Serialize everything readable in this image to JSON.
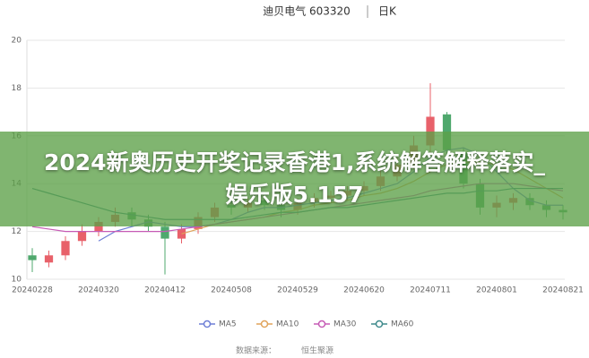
{
  "chart_data": {
    "type": "candlestick",
    "title": "迪贝电气 603320",
    "period": "日K",
    "categories": [
      "20240228",
      null,
      null,
      null,
      "20240320",
      null,
      null,
      null,
      "20240412",
      null,
      null,
      null,
      "20240508",
      null,
      null,
      null,
      "20240529",
      null,
      null,
      null,
      "20240620",
      null,
      null,
      null,
      "20240711",
      null,
      null,
      null,
      "20240801",
      null,
      null,
      null,
      "20240821"
    ],
    "open": [
      11.0,
      10.7,
      11.0,
      11.6,
      12.0,
      12.4,
      12.8,
      12.5,
      12.2,
      11.7,
      12.1,
      12.6,
      13.1,
      13.0,
      13.3,
      13.1,
      12.9,
      13.2,
      13.4,
      13.5,
      13.7,
      13.9,
      14.3,
      14.8,
      15.6,
      16.9,
      15.3,
      14.0,
      13.0,
      13.2,
      13.4,
      13.1,
      12.9
    ],
    "high": [
      11.3,
      11.2,
      11.8,
      12.3,
      12.6,
      13.0,
      13.0,
      12.7,
      12.4,
      12.3,
      12.8,
      13.2,
      13.3,
      13.4,
      13.5,
      13.3,
      13.4,
      13.6,
      13.7,
      13.9,
      14.1,
      14.6,
      15.1,
      16.0,
      18.2,
      17.0,
      15.5,
      14.2,
      13.5,
      13.6,
      13.6,
      13.3,
      13.1
    ],
    "low": [
      10.3,
      10.5,
      10.8,
      11.4,
      11.8,
      12.2,
      12.2,
      12.0,
      10.2,
      11.5,
      11.9,
      12.4,
      12.7,
      12.8,
      12.9,
      12.6,
      12.7,
      13.0,
      13.2,
      13.3,
      13.5,
      13.7,
      14.1,
      14.6,
      15.3,
      15.0,
      13.8,
      12.7,
      12.6,
      12.9,
      12.9,
      12.6,
      12.5
    ],
    "close": [
      10.8,
      11.0,
      11.6,
      12.0,
      12.4,
      12.7,
      12.5,
      12.2,
      11.7,
      12.1,
      12.6,
      13.0,
      13.0,
      13.2,
      13.1,
      12.9,
      13.2,
      13.4,
      13.5,
      13.7,
      13.9,
      14.3,
      14.8,
      15.6,
      16.8,
      15.4,
      14.0,
      13.0,
      13.2,
      13.4,
      13.1,
      12.9,
      12.8
    ],
    "up_color": "#e8616a",
    "down_color": "#4fa86d",
    "series": [
      {
        "name": "MA5",
        "color": "#6e7fd6",
        "values": [
          null,
          null,
          null,
          null,
          11.6,
          12.0,
          12.2,
          12.4,
          12.3,
          12.2,
          12.2,
          12.3,
          12.5,
          12.8,
          13.0,
          13.0,
          13.1,
          13.2,
          13.3,
          13.4,
          13.6,
          13.8,
          14.0,
          14.5,
          15.1,
          15.4,
          15.5,
          15.2,
          14.5,
          13.8,
          13.3,
          13.1,
          13.1
        ]
      },
      {
        "name": "MA10",
        "color": "#e0a35a",
        "values": [
          null,
          null,
          null,
          null,
          null,
          null,
          null,
          null,
          null,
          11.9,
          12.1,
          12.3,
          12.4,
          12.5,
          12.6,
          12.8,
          12.9,
          13.1,
          13.2,
          13.3,
          13.5,
          13.6,
          13.8,
          14.1,
          14.5,
          14.8,
          14.9,
          14.9,
          14.8,
          14.6,
          14.2,
          13.8,
          13.4
        ]
      },
      {
        "name": "MA30",
        "color": "#c65bb5",
        "values": [
          12.2,
          12.1,
          12.0,
          12.0,
          12.0,
          12.0,
          12.0,
          12.0,
          12.0,
          12.1,
          12.2,
          12.3,
          12.4,
          12.5,
          12.6,
          12.7,
          12.8,
          12.9,
          13.0,
          13.1,
          13.2,
          13.3,
          13.4,
          13.5,
          13.7,
          13.8,
          13.9,
          14.0,
          14.0,
          14.0,
          13.9,
          13.8,
          13.7
        ]
      },
      {
        "name": "MA60",
        "color": "#3f8a8c",
        "values": [
          13.8,
          13.6,
          13.4,
          13.2,
          13.0,
          12.8,
          12.7,
          12.6,
          12.5,
          12.5,
          12.5,
          12.5,
          12.5,
          12.6,
          12.7,
          12.8,
          12.8,
          12.9,
          13.0,
          13.0,
          13.1,
          13.2,
          13.3,
          13.4,
          13.5,
          13.6,
          13.6,
          13.7,
          13.7,
          13.8,
          13.8,
          13.8,
          13.8
        ]
      }
    ],
    "ylim": [
      10,
      20
    ],
    "yticks": [
      10,
      12,
      14,
      16,
      18,
      20
    ],
    "grid": true,
    "source_label": "数据来源：",
    "source": "恒生聚源"
  },
  "banner": {
    "text": "2024新奥历史开奖记录香港1,系统解答解释落实_娱乐版5.157"
  }
}
